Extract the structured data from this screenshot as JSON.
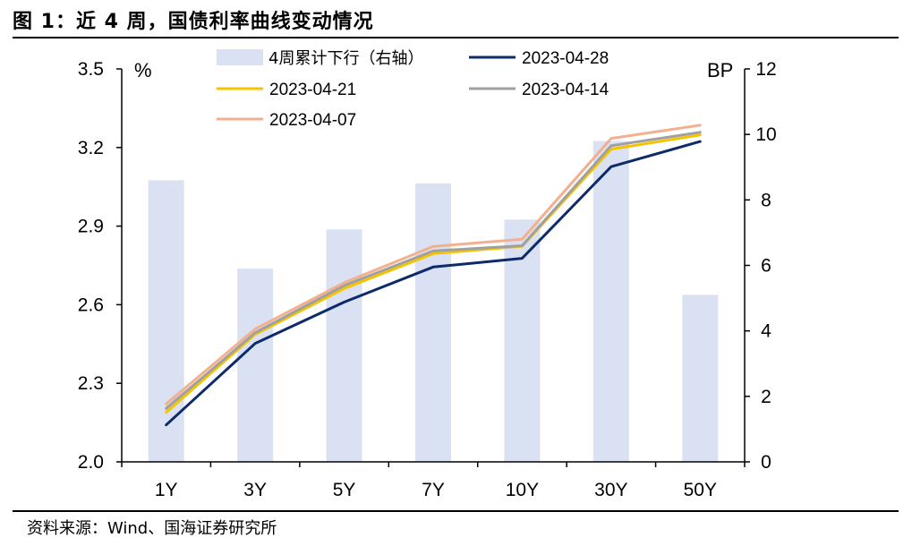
{
  "title": "图 1：近 4 周，国债利率曲线变动情况",
  "source": "资料来源：Wind、国海证券研究所",
  "chart_data": {
    "type": "bar+line",
    "categories": [
      "1Y",
      "3Y",
      "5Y",
      "7Y",
      "10Y",
      "30Y",
      "50Y"
    ],
    "left_axis": {
      "unit": "%",
      "ylim": [
        2.0,
        3.5
      ],
      "ticks": [
        "2.0",
        "2.3",
        "2.6",
        "2.9",
        "3.2",
        "3.5"
      ]
    },
    "right_axis": {
      "unit": "BP",
      "ylim": [
        0,
        12
      ],
      "ticks": [
        "0",
        "2",
        "4",
        "6",
        "8",
        "10",
        "12"
      ]
    },
    "bars": {
      "name": "4周累计下行（右轴）",
      "axis": "right",
      "color": "#d9e1f2",
      "values": [
        8.6,
        5.9,
        7.1,
        8.5,
        7.4,
        9.8,
        5.1
      ]
    },
    "series": [
      {
        "name": "2023-04-28",
        "color": "#0d2a6b",
        "values": [
          2.141,
          2.452,
          2.61,
          2.744,
          2.777,
          3.127,
          3.223
        ]
      },
      {
        "name": "2023-04-21",
        "color": "#f5c400",
        "values": [
          2.189,
          2.487,
          2.662,
          2.795,
          2.823,
          3.194,
          3.248
        ]
      },
      {
        "name": "2023-04-14",
        "color": "#a0a0a0",
        "values": [
          2.204,
          2.493,
          2.673,
          2.805,
          2.825,
          3.207,
          3.258
        ]
      },
      {
        "name": "2023-04-07",
        "color": "#f3b08e",
        "values": [
          2.221,
          2.507,
          2.684,
          2.822,
          2.85,
          3.235,
          3.285
        ]
      }
    ],
    "legend_position": "top",
    "grid": false
  }
}
